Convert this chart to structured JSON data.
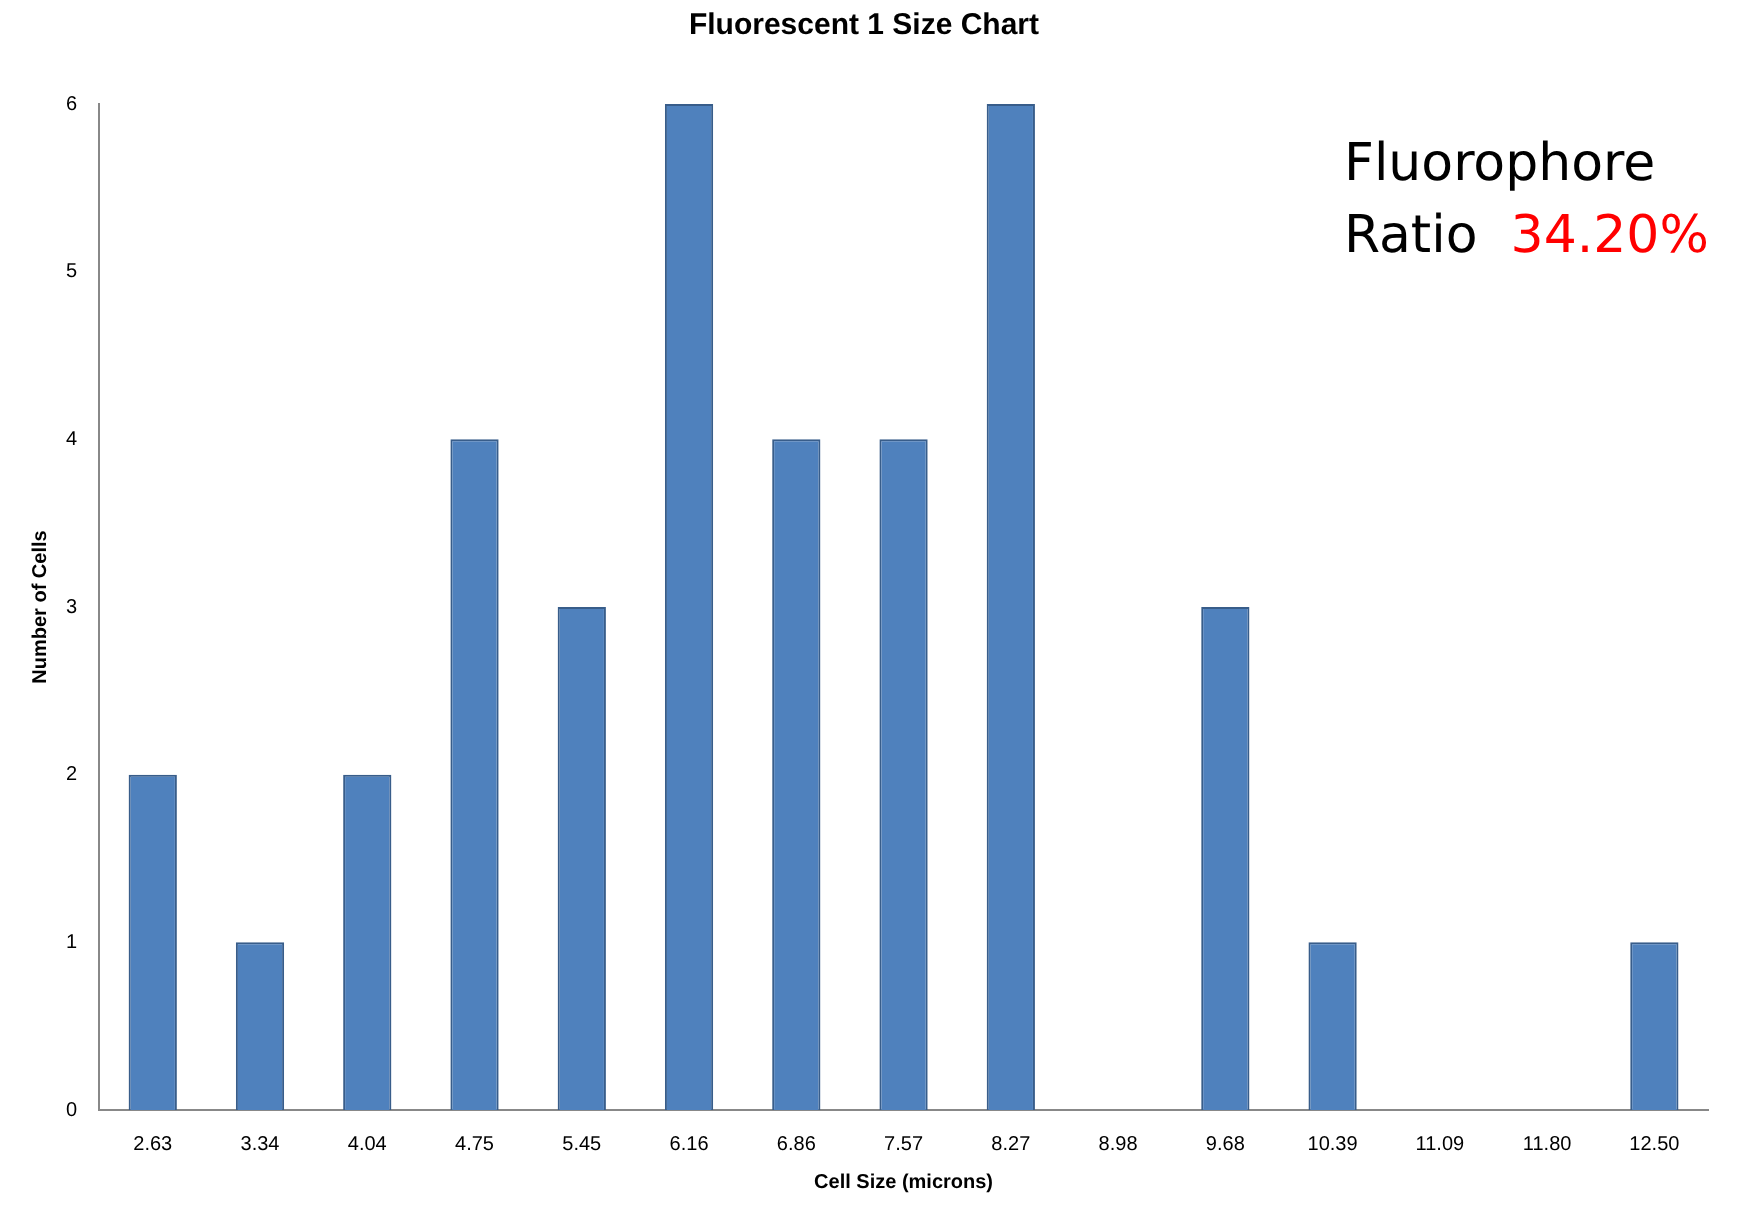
{
  "chart_data": {
    "type": "bar",
    "title": "Fluorescent 1 Size Chart",
    "xlabel": "Cell Size (microns)",
    "ylabel": "Number of Cells",
    "categories": [
      "2.63",
      "3.34",
      "4.04",
      "4.75",
      "5.45",
      "6.16",
      "6.86",
      "7.57",
      "8.27",
      "8.98",
      "9.68",
      "10.39",
      "11.09",
      "11.80",
      "12.50"
    ],
    "values": [
      2,
      1,
      2,
      4,
      3,
      6,
      4,
      4,
      6,
      0,
      3,
      1,
      0,
      0,
      1
    ],
    "color": "#4f81bd",
    "ylim": [
      0,
      6
    ],
    "yticks": [
      0,
      1,
      2,
      3,
      4,
      5,
      6
    ],
    "grid": false,
    "legend": false,
    "annotations": [
      "Fluorophore Ratio",
      "34.20%"
    ]
  }
}
